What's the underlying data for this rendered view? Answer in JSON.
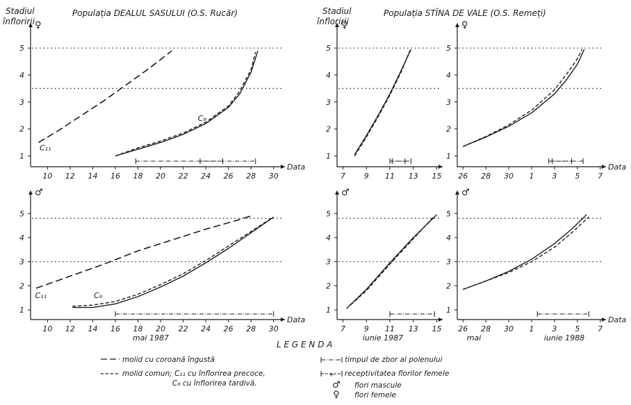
{
  "header": {
    "left_axis_title": [
      "Stadiul",
      "înfloririi"
    ],
    "right_axis_title": [
      "Stadiul",
      "înfloririi"
    ],
    "left_population": "Populația DEALUL SASULUI (O.S. Rucăr)",
    "right_population": "Populația STÎNA DE VALE (O.S. Remeți)"
  },
  "legend": {
    "title": "L E G E N D A",
    "items": [
      "molid cu coroană îngustă",
      "molid comun; C₁₁ cu înflorirea precoce,",
      "C₉ cu înflorirea tardivă.",
      "timpul de zbor al polenului",
      "receptivitatea florilor femele",
      "flori mascule",
      "flori femele"
    ],
    "male_symbol": "♂",
    "female_symbol": "♀"
  },
  "chart_data": [
    {
      "type": "line",
      "id": "female-dealul",
      "sex_symbol": "♀",
      "xlabel": "Data",
      "ylabel": "",
      "x_ticks": [
        "10",
        "12",
        "14",
        "16",
        "18",
        "20",
        "22",
        "24",
        "26",
        "28",
        "30"
      ],
      "y_ticks": [
        "1",
        "2",
        "3",
        "4",
        "5"
      ],
      "xlim": [
        8.5,
        31
      ],
      "ylim": [
        0.6,
        5.7
      ],
      "ref_lines": [
        5,
        3.5
      ],
      "annotations": [
        {
          "text": "C₁₁",
          "x": 9.3,
          "y": 1.2
        },
        {
          "text": "C₉",
          "x": 23.3,
          "y": 2.3
        }
      ],
      "series": [
        {
          "style": "dashed-long",
          "points": [
            [
              9.2,
              1.5
            ],
            [
              11,
              1.95
            ],
            [
              13,
              2.5
            ],
            [
              15,
              3.05
            ],
            [
              17,
              3.65
            ],
            [
              19,
              4.25
            ],
            [
              21,
              4.9
            ]
          ]
        },
        {
          "style": "solid",
          "points": [
            [
              16,
              1.0
            ],
            [
              18,
              1.25
            ],
            [
              20,
              1.5
            ],
            [
              22,
              1.8
            ],
            [
              24,
              2.2
            ],
            [
              26,
              2.8
            ],
            [
              27,
              3.3
            ],
            [
              28,
              4.1
            ],
            [
              28.6,
              4.9
            ]
          ]
        },
        {
          "style": "dashed",
          "points": [
            [
              16,
              1.0
            ],
            [
              18,
              1.3
            ],
            [
              20,
              1.55
            ],
            [
              22,
              1.85
            ],
            [
              24,
              2.25
            ],
            [
              26,
              2.85
            ],
            [
              27,
              3.4
            ],
            [
              28,
              4.2
            ],
            [
              28.4,
              4.85
            ]
          ]
        }
      ],
      "pollen_flight": {
        "from": 17.8,
        "to": 28.4
      },
      "receptivity": {
        "from": 23.5,
        "to": 25.5
      }
    },
    {
      "type": "line",
      "id": "male-dealul",
      "sex_symbol": "♂",
      "xlabel": "Data",
      "ylabel": "",
      "x_ticks": [
        "10",
        "12",
        "14",
        "16",
        "18",
        "20",
        "22",
        "24",
        "26",
        "28",
        "30"
      ],
      "y_ticks": [
        "1",
        "2",
        "3",
        "4",
        "5"
      ],
      "xlim": [
        8.5,
        31
      ],
      "ylim": [
        0.6,
        5.7
      ],
      "ref_lines": [
        4.8,
        3
      ],
      "month_label": "mai 1987",
      "annotations": [
        {
          "text": "C₁₁",
          "x": 8.9,
          "y": 1.5
        },
        {
          "text": "C₉",
          "x": 14.1,
          "y": 1.5
        }
      ],
      "series": [
        {
          "style": "dashed-long",
          "points": [
            [
              9,
              1.9
            ],
            [
              12,
              2.4
            ],
            [
              15,
              2.9
            ],
            [
              18,
              3.45
            ],
            [
              21,
              3.9
            ],
            [
              24,
              4.35
            ],
            [
              27,
              4.75
            ],
            [
              28,
              4.9
            ]
          ]
        },
        {
          "style": "solid",
          "points": [
            [
              12.2,
              1.1
            ],
            [
              14,
              1.1
            ],
            [
              16,
              1.25
            ],
            [
              18,
              1.55
            ],
            [
              20,
              1.95
            ],
            [
              22,
              2.4
            ],
            [
              24,
              2.95
            ],
            [
              26,
              3.55
            ],
            [
              28,
              4.2
            ],
            [
              30,
              4.85
            ]
          ]
        },
        {
          "style": "dashed",
          "points": [
            [
              12.2,
              1.15
            ],
            [
              14,
              1.2
            ],
            [
              16,
              1.35
            ],
            [
              18,
              1.65
            ],
            [
              20,
              2.05
            ],
            [
              22,
              2.5
            ],
            [
              24,
              3.05
            ],
            [
              26,
              3.65
            ],
            [
              28,
              4.25
            ],
            [
              29.8,
              4.8
            ]
          ]
        }
      ],
      "pollen_flight": {
        "from": 16,
        "to": 30
      }
    },
    {
      "type": "line",
      "id": "female-stina-1987",
      "sex_symbol": "♀",
      "xlabel": "",
      "ylabel": "",
      "x_ticks": [
        "7",
        "9",
        "11",
        "13",
        "15"
      ],
      "y_ticks": [
        "1",
        "2",
        "3",
        "4",
        "5"
      ],
      "xlim": [
        6.5,
        15.5
      ],
      "ylim": [
        0.6,
        5.7
      ],
      "ref_lines": [
        5,
        3.5
      ],
      "series": [
        {
          "style": "solid",
          "points": [
            [
              8,
              1.05
            ],
            [
              9,
              1.75
            ],
            [
              10,
              2.5
            ],
            [
              11,
              3.3
            ],
            [
              12,
              4.2
            ],
            [
              12.8,
              4.95
            ]
          ]
        },
        {
          "style": "dashed",
          "points": [
            [
              8,
              1.0
            ],
            [
              9,
              1.7
            ],
            [
              10,
              2.45
            ],
            [
              11,
              3.25
            ],
            [
              12,
              4.15
            ],
            [
              12.7,
              4.9
            ]
          ]
        }
      ],
      "pollen_flight": {
        "from": 11,
        "to": 12.8
      },
      "receptivity": {
        "from": 11.2,
        "to": 12.3
      }
    },
    {
      "type": "line",
      "id": "female-stina-1988",
      "sex_symbol": "♀",
      "xlabel": "Data",
      "ylabel": "",
      "x_ticks": [
        "26",
        "28",
        "30",
        "1",
        "3",
        "5",
        "7"
      ],
      "y_ticks": [
        "1",
        "2",
        "3",
        "4",
        "5"
      ],
      "xlim": [
        25.5,
        38.5
      ],
      "ylim": [
        0.6,
        5.7
      ],
      "ref_lines": [
        5,
        3.5
      ],
      "series": [
        {
          "style": "solid",
          "points": [
            [
              26,
              1.35
            ],
            [
              28,
              1.7
            ],
            [
              30,
              2.1
            ],
            [
              32,
              2.6
            ],
            [
              34,
              3.3
            ],
            [
              35,
              3.8
            ],
            [
              36,
              4.4
            ],
            [
              36.6,
              4.95
            ]
          ]
        },
        {
          "style": "dashed",
          "points": [
            [
              26,
              1.35
            ],
            [
              28,
              1.72
            ],
            [
              30,
              2.15
            ],
            [
              32,
              2.7
            ],
            [
              34,
              3.45
            ],
            [
              35,
              4.0
            ],
            [
              36,
              4.6
            ],
            [
              36.4,
              4.95
            ]
          ]
        }
      ],
      "pollen_flight": {
        "from": 33.5,
        "to": 36.5
      },
      "receptivity": {
        "from": 33.8,
        "to": 35.5
      }
    },
    {
      "type": "line",
      "id": "male-stina-1987",
      "sex_symbol": "♂",
      "xlabel": "",
      "ylabel": "",
      "x_ticks": [
        "7",
        "9",
        "11",
        "13",
        "15"
      ],
      "y_ticks": [
        "1",
        "2",
        "3",
        "4",
        "5"
      ],
      "xlim": [
        6.5,
        15.5
      ],
      "ylim": [
        0.6,
        5.7
      ],
      "ref_lines": [
        4.8,
        3
      ],
      "month_label": "iunie 1987",
      "series": [
        {
          "style": "solid",
          "points": [
            [
              7.5,
              1.15
            ],
            [
              9,
              1.85
            ],
            [
              11,
              2.95
            ],
            [
              13,
              4.0
            ],
            [
              15,
              4.95
            ]
          ]
        },
        {
          "style": "dashed",
          "points": [
            [
              7.3,
              1.05
            ],
            [
              9,
              1.8
            ],
            [
              11,
              2.9
            ],
            [
              13,
              3.95
            ],
            [
              14.8,
              4.9
            ]
          ]
        }
      ],
      "pollen_flight": {
        "from": 11,
        "to": 14.8
      }
    },
    {
      "type": "line",
      "id": "male-stina-1988",
      "sex_symbol": "♂",
      "xlabel": "Data",
      "ylabel": "",
      "x_ticks": [
        "26",
        "28",
        "30",
        "1",
        "3",
        "5",
        "7"
      ],
      "y_ticks": [
        "1",
        "2",
        "3",
        "4",
        "5"
      ],
      "xlim": [
        25.5,
        38.5
      ],
      "ylim": [
        0.6,
        5.7
      ],
      "ref_lines": [
        4.8,
        3
      ],
      "month_labels": [
        "mai",
        "iunie 1988"
      ],
      "series": [
        {
          "style": "solid",
          "points": [
            [
              26,
              1.85
            ],
            [
              28,
              2.2
            ],
            [
              30,
              2.6
            ],
            [
              32,
              3.1
            ],
            [
              34,
              3.75
            ],
            [
              35.5,
              4.35
            ],
            [
              36.8,
              4.95
            ]
          ]
        },
        {
          "style": "dashed",
          "points": [
            [
              26,
              1.85
            ],
            [
              28,
              2.2
            ],
            [
              30,
              2.55
            ],
            [
              32,
              3.0
            ],
            [
              34,
              3.6
            ],
            [
              35.5,
              4.2
            ],
            [
              37,
              4.85
            ]
          ]
        }
      ],
      "pollen_flight": {
        "from": 32.5,
        "to": 37
      }
    }
  ]
}
